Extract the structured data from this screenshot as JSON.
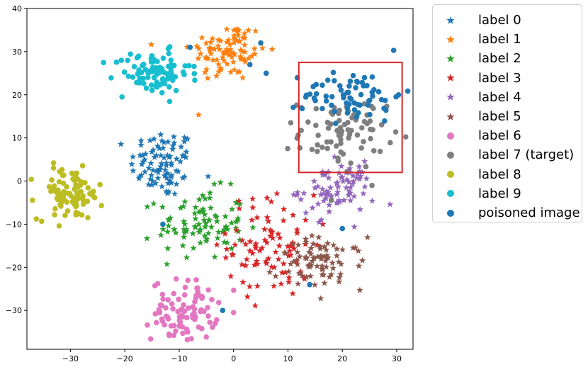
{
  "chart_data": {
    "type": "scatter",
    "title": "",
    "xlabel": "",
    "ylabel": "",
    "xlim": [
      -38,
      33
    ],
    "ylim": [
      -39,
      40
    ],
    "xticks": [
      -30,
      -20,
      -10,
      0,
      10,
      20,
      30
    ],
    "yticks": [
      -30,
      -20,
      -10,
      0,
      10,
      20,
      30,
      40
    ],
    "xtick_labels": [
      "−30",
      "−20",
      "−10",
      "0",
      "10",
      "20",
      "30"
    ],
    "ytick_labels": [
      "−30",
      "−20",
      "−10",
      "0",
      "10",
      "20",
      "30",
      "40"
    ],
    "grid": false,
    "legend_position": "outside-top-right",
    "highlight_box": {
      "x": [
        12,
        31
      ],
      "y": [
        2,
        27.5
      ],
      "color": "#d62728"
    },
    "series": [
      {
        "name": "label 0",
        "marker": "star",
        "color": "#1f77b4",
        "clusters": [
          {
            "cx": -13,
            "cy": 4,
            "sx": 3,
            "sy": 4,
            "n": 90
          }
        ]
      },
      {
        "name": "label 1",
        "marker": "star",
        "color": "#ff7f0e",
        "clusters": [
          {
            "cx": -1,
            "cy": 30,
            "sx": 3.5,
            "sy": 3.5,
            "n": 90
          }
        ]
      },
      {
        "name": "label 2",
        "marker": "star",
        "color": "#2ca02c",
        "clusters": [
          {
            "cx": -6,
            "cy": -10,
            "sx": 4,
            "sy": 4,
            "n": 90
          }
        ]
      },
      {
        "name": "label 3",
        "marker": "star",
        "color": "#d62728",
        "clusters": [
          {
            "cx": 7,
            "cy": -15,
            "sx": 4,
            "sy": 6,
            "n": 90
          }
        ]
      },
      {
        "name": "label 4",
        "marker": "star",
        "color": "#9467bd",
        "clusters": [
          {
            "cx": 19,
            "cy": -2,
            "sx": 3.5,
            "sy": 3,
            "n": 80
          }
        ]
      },
      {
        "name": "label 5",
        "marker": "star",
        "color": "#8c564b",
        "clusters": [
          {
            "cx": 16,
            "cy": -19,
            "sx": 4,
            "sy": 3,
            "n": 80
          }
        ]
      },
      {
        "name": "label 6",
        "marker": "circle",
        "color": "#e377c2",
        "clusters": [
          {
            "cx": -9,
            "cy": -30,
            "sx": 3,
            "sy": 3.5,
            "n": 90
          }
        ]
      },
      {
        "name": "label 7 (target)",
        "marker": "circle",
        "color": "#7f7f7f",
        "clusters": [
          {
            "cx": 20,
            "cy": 11,
            "sx": 4,
            "sy": 4,
            "n": 80
          }
        ]
      },
      {
        "name": "label 8",
        "marker": "circle",
        "color": "#bcbd22",
        "clusters": [
          {
            "cx": -30,
            "cy": -3,
            "sx": 3,
            "sy": 3,
            "n": 90
          }
        ]
      },
      {
        "name": "label 9",
        "marker": "circle",
        "color": "#17becf",
        "clusters": [
          {
            "cx": -15,
            "cy": 25,
            "sx": 3.5,
            "sy": 2.5,
            "n": 90
          }
        ]
      },
      {
        "name": "poisoned image",
        "marker": "circle",
        "color": "#1f77b4",
        "clusters": [
          {
            "cx": 22,
            "cy": 20,
            "sx": 4.5,
            "sy": 3,
            "n": 70
          }
        ],
        "extra_points": [
          [
            -8,
            31
          ],
          [
            5,
            32
          ],
          [
            3,
            27
          ],
          [
            6,
            25
          ],
          [
            -13,
            -10
          ],
          [
            -2,
            -30
          ],
          [
            14,
            -24
          ],
          [
            20,
            -11
          ]
        ]
      }
    ]
  }
}
